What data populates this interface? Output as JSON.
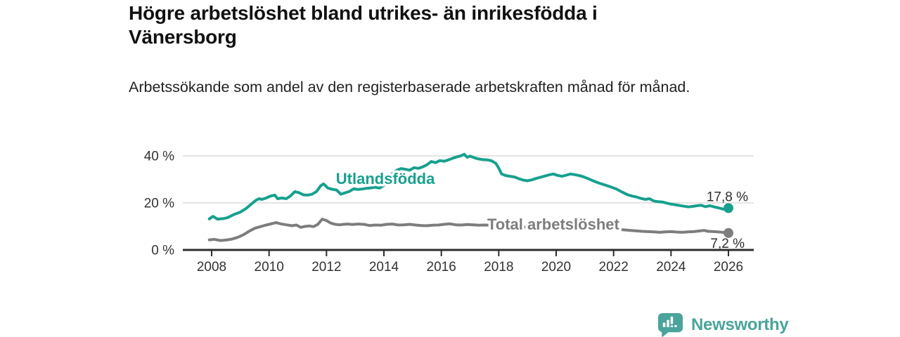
{
  "header": {
    "title": "Högre arbetslöshet bland utrikes- än inrikesfödda i Vänersborg",
    "subtitle": "Arbetssökande som andel av den registerbaserade arbetskraften månad för månad."
  },
  "footer": {
    "brand": "Newsworthy",
    "logo_icon": "newsworthy-speech-bubble-bar-chart-icon"
  },
  "colors": {
    "accent_teal": "#17a08e",
    "series_gray": "#7d7d7d",
    "logo_teal": "#4ba49b",
    "axis_text": "#333333",
    "value_text": "#2e2e2e",
    "grid_line": "#dcdcdc",
    "axis_line": "#2e2e2e",
    "title_text": "#111111"
  },
  "chart_data": {
    "type": "line",
    "title": "Högre arbetslöshet bland utrikes- än inrikesfödda i Vänersborg",
    "xlabel": "",
    "ylabel": "",
    "x_ticks": [
      2008,
      2010,
      2012,
      2014,
      2016,
      2018,
      2020,
      2022,
      2024,
      2026
    ],
    "y_ticks": [
      0,
      20,
      40
    ],
    "y_tick_labels": [
      "0 %",
      "20 %",
      "40 %"
    ],
    "xlim": [
      2007.0,
      2026.9
    ],
    "ylim": [
      0,
      44
    ],
    "grid": "horizontal",
    "legend_position": "inline-labels-on-chart",
    "series": [
      {
        "name": "Utlandsfödda",
        "color": "#17a08e",
        "end_label": "17,8 %",
        "end_value": 17.8,
        "end_label_side": "above",
        "label_x": 2012.33,
        "label_y": 28.0,
        "points": [
          [
            2007.92,
            13.2
          ],
          [
            2008.05,
            14.3
          ],
          [
            2008.2,
            13.1
          ],
          [
            2008.4,
            13.3
          ],
          [
            2008.55,
            13.7
          ],
          [
            2008.8,
            15.2
          ],
          [
            2009.0,
            16.1
          ],
          [
            2009.2,
            17.6
          ],
          [
            2009.4,
            19.7
          ],
          [
            2009.55,
            21.2
          ],
          [
            2009.65,
            21.8
          ],
          [
            2009.75,
            21.5
          ],
          [
            2009.9,
            22.1
          ],
          [
            2010.05,
            22.9
          ],
          [
            2010.2,
            23.3
          ],
          [
            2010.3,
            21.8
          ],
          [
            2010.45,
            22.1
          ],
          [
            2010.6,
            21.8
          ],
          [
            2010.75,
            23.0
          ],
          [
            2010.9,
            24.8
          ],
          [
            2011.05,
            24.3
          ],
          [
            2011.2,
            23.4
          ],
          [
            2011.35,
            23.3
          ],
          [
            2011.5,
            23.7
          ],
          [
            2011.65,
            24.8
          ],
          [
            2011.8,
            27.3
          ],
          [
            2011.9,
            28.1
          ],
          [
            2012.05,
            26.3
          ],
          [
            2012.2,
            25.8
          ],
          [
            2012.35,
            25.5
          ],
          [
            2012.5,
            23.7
          ],
          [
            2012.65,
            24.3
          ],
          [
            2012.8,
            24.9
          ],
          [
            2012.95,
            26.0
          ],
          [
            2013.1,
            25.7
          ],
          [
            2013.25,
            25.9
          ],
          [
            2013.4,
            26.2
          ],
          [
            2013.55,
            26.4
          ],
          [
            2013.7,
            26.7
          ],
          [
            2013.85,
            26.3
          ],
          [
            2014.0,
            27.5
          ],
          [
            2014.15,
            30.0
          ],
          [
            2014.3,
            32.5
          ],
          [
            2014.45,
            33.9
          ],
          [
            2014.6,
            34.6
          ],
          [
            2014.75,
            34.3
          ],
          [
            2014.9,
            33.9
          ],
          [
            2015.05,
            35.0
          ],
          [
            2015.2,
            34.7
          ],
          [
            2015.35,
            35.3
          ],
          [
            2015.5,
            36.2
          ],
          [
            2015.65,
            37.6
          ],
          [
            2015.8,
            37.1
          ],
          [
            2015.95,
            38.0
          ],
          [
            2016.1,
            37.7
          ],
          [
            2016.25,
            38.3
          ],
          [
            2016.4,
            39.0
          ],
          [
            2016.55,
            39.6
          ],
          [
            2016.7,
            40.1
          ],
          [
            2016.8,
            40.7
          ],
          [
            2016.9,
            39.4
          ],
          [
            2017.0,
            39.9
          ],
          [
            2017.15,
            39.2
          ],
          [
            2017.3,
            38.7
          ],
          [
            2017.45,
            38.4
          ],
          [
            2017.6,
            38.3
          ],
          [
            2017.75,
            37.9
          ],
          [
            2017.9,
            36.8
          ],
          [
            2018.0,
            34.8
          ],
          [
            2018.1,
            32.3
          ],
          [
            2018.25,
            31.6
          ],
          [
            2018.4,
            31.3
          ],
          [
            2018.55,
            31.0
          ],
          [
            2018.7,
            30.3
          ],
          [
            2018.85,
            29.7
          ],
          [
            2019.0,
            29.4
          ],
          [
            2019.15,
            29.8
          ],
          [
            2019.3,
            30.4
          ],
          [
            2019.45,
            30.9
          ],
          [
            2019.6,
            31.4
          ],
          [
            2019.75,
            31.9
          ],
          [
            2019.9,
            32.3
          ],
          [
            2020.05,
            31.7
          ],
          [
            2020.2,
            31.3
          ],
          [
            2020.35,
            31.8
          ],
          [
            2020.5,
            32.3
          ],
          [
            2020.65,
            32.0
          ],
          [
            2020.8,
            31.6
          ],
          [
            2020.95,
            31.1
          ],
          [
            2021.1,
            30.4
          ],
          [
            2021.3,
            29.3
          ],
          [
            2021.5,
            28.4
          ],
          [
            2021.7,
            27.6
          ],
          [
            2021.9,
            26.8
          ],
          [
            2022.1,
            25.9
          ],
          [
            2022.3,
            24.6
          ],
          [
            2022.5,
            23.4
          ],
          [
            2022.65,
            22.9
          ],
          [
            2022.8,
            22.5
          ],
          [
            2022.95,
            21.9
          ],
          [
            2023.1,
            21.5
          ],
          [
            2023.25,
            21.8
          ],
          [
            2023.4,
            20.8
          ],
          [
            2023.55,
            20.5
          ],
          [
            2023.7,
            20.4
          ],
          [
            2023.85,
            19.9
          ],
          [
            2024.0,
            19.5
          ],
          [
            2024.15,
            19.2
          ],
          [
            2024.3,
            18.9
          ],
          [
            2024.45,
            18.6
          ],
          [
            2024.6,
            18.3
          ],
          [
            2024.75,
            18.5
          ],
          [
            2024.9,
            18.8
          ],
          [
            2025.05,
            19.0
          ],
          [
            2025.2,
            18.4
          ],
          [
            2025.35,
            18.8
          ],
          [
            2025.5,
            18.3
          ],
          [
            2025.65,
            17.9
          ],
          [
            2025.8,
            17.4
          ],
          [
            2025.92,
            17.2
          ],
          [
            2026.0,
            17.8
          ]
        ]
      },
      {
        "name": "Total arbetslöshet",
        "color": "#7d7d7d",
        "end_label": "7,2 %",
        "end_value": 7.2,
        "end_label_side": "below",
        "label_x": 2017.6,
        "label_y": 8.66,
        "points": [
          [
            2007.92,
            4.3
          ],
          [
            2008.1,
            4.5
          ],
          [
            2008.3,
            4.0
          ],
          [
            2008.5,
            4.2
          ],
          [
            2008.7,
            4.6
          ],
          [
            2008.9,
            5.3
          ],
          [
            2009.1,
            6.4
          ],
          [
            2009.3,
            7.9
          ],
          [
            2009.5,
            9.2
          ],
          [
            2009.7,
            9.9
          ],
          [
            2009.9,
            10.6
          ],
          [
            2010.1,
            11.2
          ],
          [
            2010.25,
            11.6
          ],
          [
            2010.4,
            11.1
          ],
          [
            2010.6,
            10.7
          ],
          [
            2010.8,
            10.3
          ],
          [
            2010.95,
            10.6
          ],
          [
            2011.1,
            9.6
          ],
          [
            2011.25,
            10.0
          ],
          [
            2011.4,
            10.2
          ],
          [
            2011.55,
            9.9
          ],
          [
            2011.7,
            10.9
          ],
          [
            2011.85,
            13.1
          ],
          [
            2012.0,
            12.5
          ],
          [
            2012.15,
            11.4
          ],
          [
            2012.3,
            10.9
          ],
          [
            2012.45,
            10.7
          ],
          [
            2012.6,
            10.9
          ],
          [
            2012.75,
            11.0
          ],
          [
            2012.9,
            10.8
          ],
          [
            2013.1,
            11.0
          ],
          [
            2013.3,
            10.9
          ],
          [
            2013.5,
            10.4
          ],
          [
            2013.7,
            10.6
          ],
          [
            2013.9,
            10.5
          ],
          [
            2014.1,
            10.9
          ],
          [
            2014.3,
            11.0
          ],
          [
            2014.5,
            10.6
          ],
          [
            2014.7,
            10.7
          ],
          [
            2014.9,
            10.9
          ],
          [
            2015.1,
            10.6
          ],
          [
            2015.3,
            10.4
          ],
          [
            2015.5,
            10.3
          ],
          [
            2015.7,
            10.5
          ],
          [
            2015.9,
            10.6
          ],
          [
            2016.1,
            10.9
          ],
          [
            2016.3,
            11.1
          ],
          [
            2016.5,
            10.7
          ],
          [
            2016.7,
            10.6
          ],
          [
            2016.9,
            10.8
          ],
          [
            2017.1,
            10.7
          ],
          [
            2017.3,
            10.5
          ],
          [
            2017.5,
            10.6
          ],
          [
            2017.7,
            10.5
          ],
          [
            2017.9,
            10.3
          ],
          [
            2018.1,
            10.2
          ],
          [
            2018.4,
            10.0
          ],
          [
            2018.7,
            9.8
          ],
          [
            2019.0,
            9.7
          ],
          [
            2019.3,
            9.9
          ],
          [
            2019.6,
            10.1
          ],
          [
            2019.9,
            10.5
          ],
          [
            2020.2,
            11.3
          ],
          [
            2020.4,
            11.7
          ],
          [
            2020.6,
            11.5
          ],
          [
            2020.8,
            11.2
          ],
          [
            2021.0,
            10.8
          ],
          [
            2021.2,
            10.4
          ],
          [
            2021.4,
            10.0
          ],
          [
            2021.6,
            9.6
          ],
          [
            2021.8,
            9.2
          ],
          [
            2022.0,
            8.9
          ],
          [
            2022.2,
            8.7
          ],
          [
            2022.4,
            8.5
          ],
          [
            2022.6,
            8.3
          ],
          [
            2022.8,
            8.1
          ],
          [
            2023.0,
            7.9
          ],
          [
            2023.2,
            7.8
          ],
          [
            2023.4,
            7.7
          ],
          [
            2023.6,
            7.5
          ],
          [
            2023.8,
            7.7
          ],
          [
            2024.0,
            7.8
          ],
          [
            2024.2,
            7.6
          ],
          [
            2024.4,
            7.5
          ],
          [
            2024.6,
            7.7
          ],
          [
            2024.8,
            7.8
          ],
          [
            2025.0,
            8.1
          ],
          [
            2025.15,
            8.3
          ],
          [
            2025.3,
            7.9
          ],
          [
            2025.5,
            7.8
          ],
          [
            2025.7,
            7.6
          ],
          [
            2025.85,
            7.4
          ],
          [
            2026.0,
            7.2
          ]
        ]
      }
    ]
  }
}
